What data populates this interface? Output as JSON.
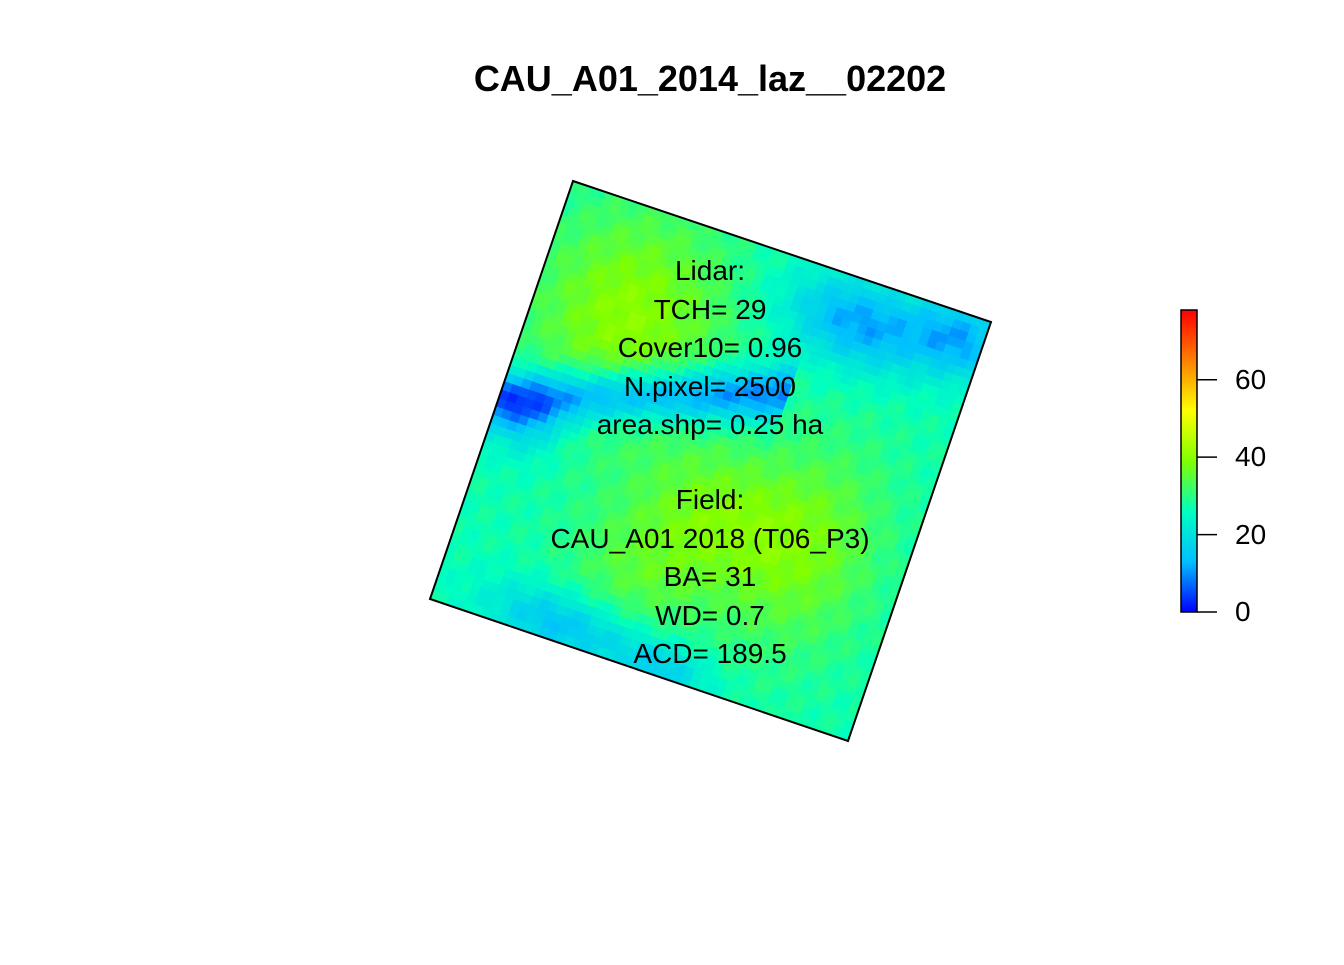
{
  "chart_data": {
    "type": "heatmap",
    "title": "CAU_A01_2014_laz__02202",
    "xlabel": "",
    "ylabel": "",
    "colorbar": {
      "range": [
        0,
        78
      ],
      "ticks": [
        0,
        20,
        40,
        60
      ],
      "palette": [
        "#0000ff",
        "#00bfff",
        "#00ffc0",
        "#80ff00",
        "#ffff00",
        "#ff8000",
        "#ff0000"
      ],
      "palette_name": "rainbow (blue to red)"
    },
    "raster": {
      "grid": "50 x 50",
      "shape": "rotated square tile",
      "value_features": [
        {
          "area": "band across upper-middle",
          "approx_value": 8
        },
        {
          "area": "upper-right corner",
          "approx_value": 12
        },
        {
          "area": "lower-left edge",
          "approx_value": 14
        },
        {
          "area": "upper-left",
          "approx_value": 40
        },
        {
          "area": "center",
          "approx_value": 38
        },
        {
          "area": "lower-right",
          "approx_value": 36
        },
        {
          "area": "background",
          "approx_value": 28
        }
      ]
    },
    "annotations": {
      "lidar": [
        "Lidar:",
        "TCH= 29",
        "Cover10= 0.96",
        "N.pixel= 2500",
        "area.shp= 0.25 ha"
      ],
      "field": [
        "Field:",
        "CAU_A01 2018 (T06_P3)",
        "BA= 31",
        "WD= 0.7",
        "ACD= 189.5"
      ]
    }
  }
}
